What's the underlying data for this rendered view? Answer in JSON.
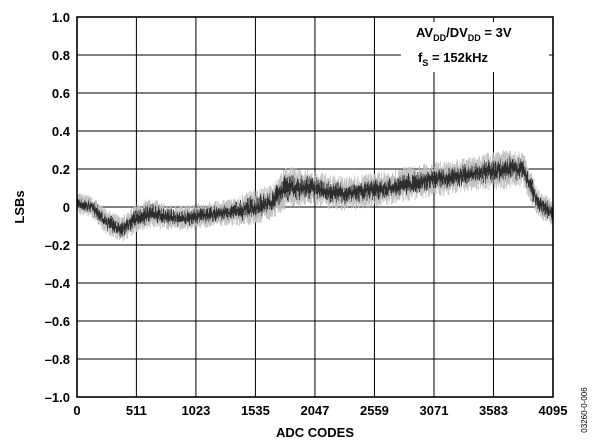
{
  "chart_data": {
    "type": "line",
    "title": "",
    "xlabel": "ADC CODES",
    "ylabel": "LSBs",
    "xlim": [
      0,
      4095
    ],
    "ylim": [
      -1.0,
      1.0
    ],
    "grid": true,
    "x_ticks": [
      0,
      511,
      1023,
      1535,
      2047,
      2559,
      3071,
      3583,
      4095
    ],
    "x_tick_labels": [
      "0",
      "511",
      "1023",
      "1535",
      "2047",
      "2559",
      "3071",
      "3583",
      "4095"
    ],
    "y_ticks": [
      1.0,
      0.8,
      0.6,
      0.4,
      0.2,
      0,
      -0.2,
      -0.4,
      -0.6,
      -0.8,
      -1.0
    ],
    "y_tick_labels": [
      "1.0",
      "0.8",
      "0.6",
      "0.4",
      "0.2",
      "0",
      "–0.2",
      "–0.4",
      "–0.6",
      "–0.8",
      "–1.0"
    ],
    "annotations": {
      "supply": {
        "base1": "AV",
        "sub1": "DD",
        "mid": "/DV",
        "sub2": "DD",
        "tail": " = 3V"
      },
      "sample_rate": {
        "base": "f",
        "sub": "S",
        "tail": " = 152kHz"
      }
    },
    "figure_id": "03260-0-006",
    "series": [
      {
        "x": [
          0,
          128,
          256,
          384,
          511,
          640,
          767,
          896,
          1023,
          1152,
          1279,
          1408,
          1535,
          1664,
          1791,
          1920,
          2047,
          2176,
          2303,
          2432,
          2559,
          2688,
          2815,
          2944,
          3071,
          3200,
          3327,
          3456,
          3583,
          3712,
          3839,
          3968,
          4095
        ],
        "y": [
          0.02,
          0.0,
          -0.08,
          -0.12,
          -0.06,
          -0.03,
          -0.05,
          -0.06,
          -0.05,
          -0.04,
          -0.03,
          -0.02,
          0.0,
          0.02,
          0.1,
          0.1,
          0.1,
          0.08,
          0.07,
          0.08,
          0.09,
          0.1,
          0.12,
          0.13,
          0.15,
          0.15,
          0.17,
          0.18,
          0.19,
          0.2,
          0.2,
          0.02,
          -0.03
        ],
        "spread": [
          0.05,
          0.05,
          0.06,
          0.06,
          0.07,
          0.07,
          0.06,
          0.06,
          0.06,
          0.06,
          0.06,
          0.07,
          0.09,
          0.08,
          0.1,
          0.09,
          0.08,
          0.08,
          0.08,
          0.08,
          0.08,
          0.08,
          0.08,
          0.08,
          0.08,
          0.08,
          0.08,
          0.08,
          0.09,
          0.09,
          0.08,
          0.07,
          0.06
        ]
      }
    ]
  }
}
